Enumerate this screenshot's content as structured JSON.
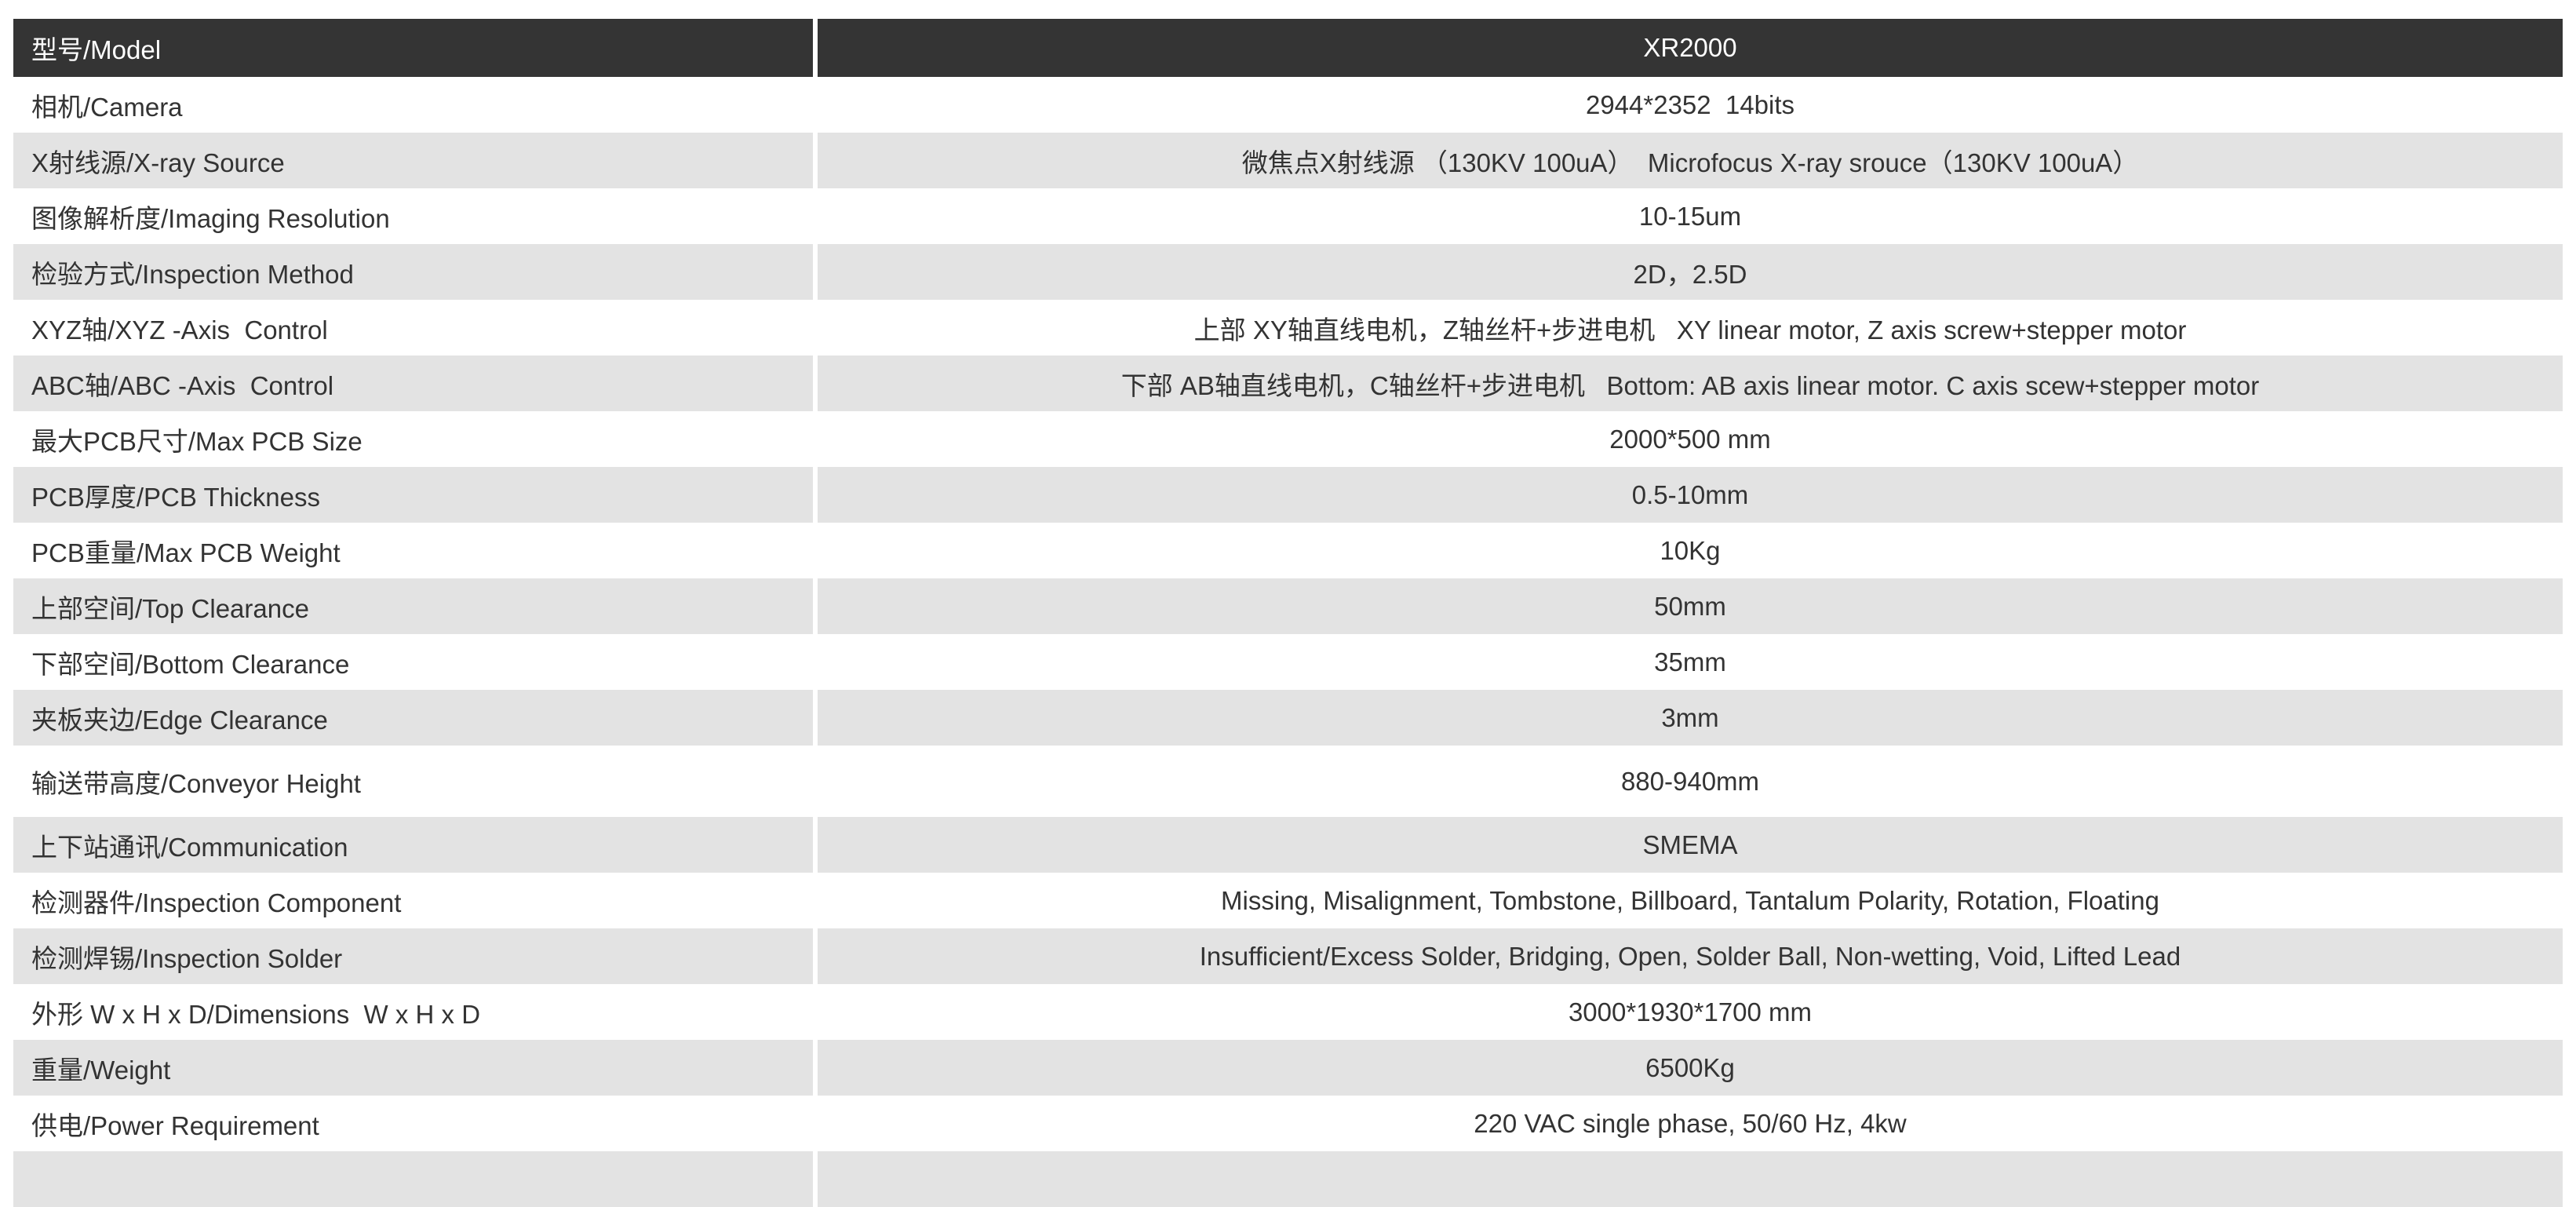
{
  "page": {
    "background": "#ffffff"
  },
  "table": {
    "colors": {
      "dark_row_bg": "#343434",
      "gray_row_bg": "#e3e3e3",
      "white_row_bg": "#ffffff",
      "text": "#333333",
      "header_text": "#ffffff",
      "divider": "#ffffff"
    },
    "rows": [
      {
        "name": "model",
        "label": "型号/Model",
        "value": "XR2000",
        "variant": "dark"
      },
      {
        "name": "camera",
        "label": "相机/Camera",
        "value": "2944*2352  14bits",
        "variant": "white"
      },
      {
        "name": "xray-source",
        "label": "X射线源/X-ray Source",
        "value": "微焦点X射线源 （130KV 100uA）  Microfocus X-ray srouce（130KV 100uA）",
        "variant": "gray"
      },
      {
        "name": "imaging-resolution",
        "label": "图像解析度/Imaging Resolution",
        "value": "10-15um",
        "variant": "white"
      },
      {
        "name": "inspection-method",
        "label": "检验方式/Inspection Method",
        "value": "2D，2.5D",
        "variant": "gray"
      },
      {
        "name": "xyz-axis-control",
        "label": "XYZ轴/XYZ -Axis  Control",
        "value": "上部 XY轴直线电机，Z轴丝杆+步进电机   XY linear motor, Z axis screw+stepper motor",
        "variant": "white"
      },
      {
        "name": "abc-axis-control",
        "label": "ABC轴/ABC -Axis  Control",
        "value": "下部 AB轴直线电机，C轴丝杆+步进电机   Bottom: AB axis linear motor. C axis scew+stepper motor",
        "variant": "gray"
      },
      {
        "name": "max-pcb-size",
        "label": "最大PCB尺寸/Max PCB Size",
        "value": "2000*500 mm",
        "variant": "white"
      },
      {
        "name": "pcb-thickness",
        "label": "PCB厚度/PCB Thickness",
        "value": "0.5-10mm",
        "variant": "gray"
      },
      {
        "name": "max-pcb-weight",
        "label": "PCB重量/Max PCB Weight",
        "value": "10Kg",
        "variant": "white"
      },
      {
        "name": "top-clearance",
        "label": "上部空间/Top Clearance",
        "value": "50mm",
        "variant": "gray"
      },
      {
        "name": "bottom-clearance",
        "label": "下部空间/Bottom Clearance",
        "value": "35mm",
        "variant": "white"
      },
      {
        "name": "edge-clearance",
        "label": "夹板夹边/Edge Clearance",
        "value": "3mm",
        "variant": "gray"
      },
      {
        "name": "conveyor-height",
        "label": "输送带高度/Conveyor Height",
        "value": "880-940mm",
        "variant": "white",
        "tall": true
      },
      {
        "name": "communication",
        "label": "上下站通讯/Communication",
        "value": "SMEMA",
        "variant": "gray"
      },
      {
        "name": "inspection-component",
        "label": "检测器件/Inspection Component",
        "value": "Missing, Misalignment, Tombstone, Billboard, Tantalum Polarity, Rotation, Floating",
        "variant": "white"
      },
      {
        "name": "inspection-solder",
        "label": "检测焊锡/Inspection Solder",
        "value": "Insufficient/Excess Solder, Bridging, Open, Solder Ball, Non-wetting, Void, Lifted Lead",
        "variant": "gray"
      },
      {
        "name": "dimensions",
        "label": "外形 W x H x D/Dimensions  W x H x D",
        "value": "3000*1930*1700 mm",
        "variant": "white"
      },
      {
        "name": "weight",
        "label": "重量/Weight",
        "value": "6500Kg",
        "variant": "gray"
      },
      {
        "name": "power-requirement",
        "label": "供电/Power Requirement",
        "value": "220 VAC single phase, 50/60 Hz, 4kw",
        "variant": "white"
      },
      {
        "name": "next-row-partial",
        "label": "",
        "value": "",
        "variant": "gray"
      }
    ]
  }
}
